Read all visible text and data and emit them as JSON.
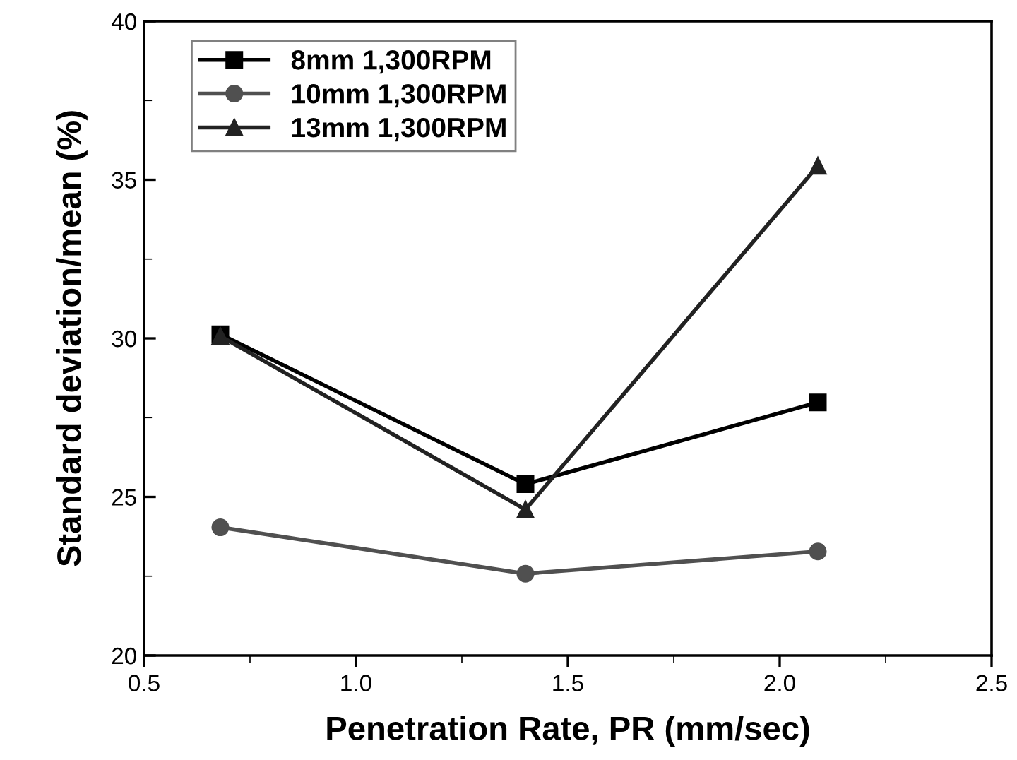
{
  "chart_data": {
    "type": "line",
    "xlabel": "Penetration Rate, PR (mm/sec)",
    "ylabel": "Standard deviation/mean (%)",
    "x": [
      0.68,
      1.4,
      2.09
    ],
    "series": [
      {
        "name": "8mm 1,300RPM",
        "color": "#000000",
        "marker": "square",
        "values": [
          30.13,
          25.4,
          27.98
        ]
      },
      {
        "name": "10mm 1,300RPM",
        "color": "#505050",
        "marker": "circle",
        "values": [
          24.04,
          22.58,
          23.28
        ]
      },
      {
        "name": "13mm 1,300RPM",
        "color": "#222222",
        "marker": "triangle",
        "values": [
          30.07,
          24.6,
          35.44
        ]
      }
    ],
    "xlim": [
      0.5,
      2.5
    ],
    "xticks": [
      0.5,
      {
        "value": 1,
        "label": "1.0"
      },
      1.5,
      {
        "value": 2,
        "label": "2.0"
      },
      2.5
    ],
    "ylim": [
      20,
      40
    ],
    "yticks": [
      20,
      25,
      30,
      35,
      40
    ],
    "legend": "top left",
    "grid": false,
    "line_style": "solid"
  }
}
